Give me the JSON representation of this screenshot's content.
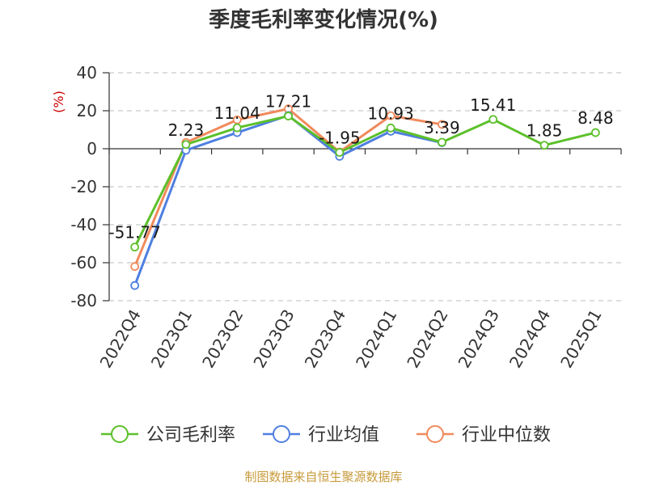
{
  "chart_data": {
    "type": "line",
    "title": "季度毛利率变化情况(%)",
    "ylabel": "(%)",
    "xlabel": "",
    "categories": [
      "2022Q4",
      "2023Q1",
      "2023Q2",
      "2023Q3",
      "2023Q4",
      "2024Q1",
      "2024Q2",
      "2024Q3",
      "2024Q4",
      "2025Q1"
    ],
    "ylim": [
      -80,
      40
    ],
    "yticks": [
      40,
      20,
      0,
      -20,
      -40,
      -60,
      -80
    ],
    "grid": "horizontal dashed",
    "legend_position": "bottom",
    "series": [
      {
        "name": "公司毛利率",
        "color": "#5cc02a",
        "values": [
          -51.77,
          2.23,
          11.04,
          17.21,
          -1.95,
          10.93,
          3.39,
          15.41,
          1.85,
          8.48
        ],
        "labels": [
          "-51.77",
          "2.23",
          "11.04",
          "17.21",
          "-1.95",
          "10.93",
          "3.39",
          "15.41",
          "1.85",
          "8.48"
        ]
      },
      {
        "name": "行业均值",
        "color": "#4f7fe0",
        "values": [
          -72.0,
          -0.8,
          8.5,
          17.5,
          -4.0,
          9.2,
          3.2,
          null,
          null,
          null
        ]
      },
      {
        "name": "行业中位数",
        "color": "#f08a5c",
        "values": [
          -62.0,
          3.3,
          15.2,
          21.0,
          -1.7,
          17.4,
          12.8,
          null,
          null,
          null
        ]
      }
    ]
  },
  "source": "制图数据来自恒生聚源数据库"
}
